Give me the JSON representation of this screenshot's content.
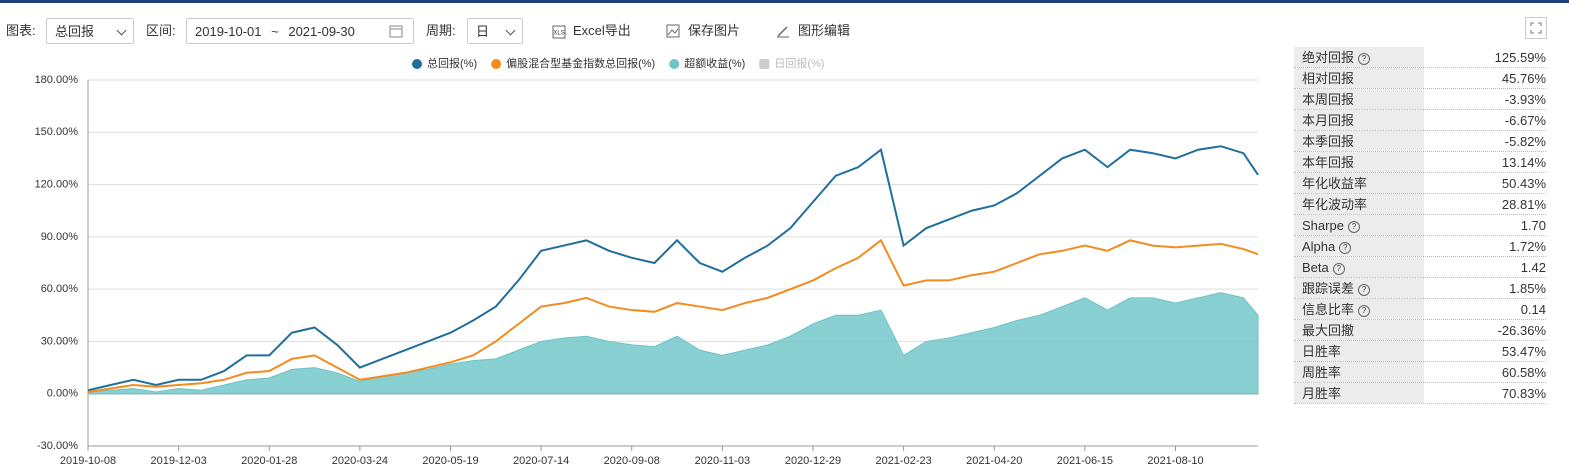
{
  "toolbar": {
    "chart_label": "图表:",
    "chart_select": "总回报",
    "range_label": "区间:",
    "start": "2019-10-01",
    "sep": "~",
    "end": "2021-09-30",
    "period_label": "周期:",
    "period": "日",
    "export": "Excel导出",
    "save": "保存图片",
    "edit": "图形编辑"
  },
  "chart_data": {
    "type": "line",
    "x": [
      "2019-10-08",
      "2019-10-22",
      "2019-11-05",
      "2019-11-19",
      "2019-12-03",
      "2019-12-17",
      "2019-12-31",
      "2020-01-14",
      "2020-01-28",
      "2020-02-11",
      "2020-02-25",
      "2020-03-10",
      "2020-03-24",
      "2020-04-07",
      "2020-04-21",
      "2020-05-05",
      "2020-05-19",
      "2020-06-02",
      "2020-06-16",
      "2020-06-30",
      "2020-07-14",
      "2020-07-28",
      "2020-08-11",
      "2020-08-25",
      "2020-09-08",
      "2020-09-22",
      "2020-10-06",
      "2020-10-20",
      "2020-11-03",
      "2020-11-17",
      "2020-12-01",
      "2020-12-15",
      "2020-12-29",
      "2021-01-12",
      "2021-01-26",
      "2021-02-09",
      "2021-02-23",
      "2021-03-09",
      "2021-03-23",
      "2021-04-06",
      "2021-04-20",
      "2021-05-04",
      "2021-05-18",
      "2021-06-01",
      "2021-06-15",
      "2021-06-29",
      "2021-07-13",
      "2021-07-27",
      "2021-08-10",
      "2021-08-24",
      "2021-09-07",
      "2021-09-21",
      "2021-09-30"
    ],
    "series": [
      {
        "name": "总回报(%)",
        "color": "#1f6f9c",
        "kind": "line",
        "values": [
          2,
          5,
          8,
          5,
          8,
          8,
          13,
          22,
          22,
          35,
          38,
          28,
          15,
          20,
          25,
          30,
          35,
          42,
          50,
          65,
          82,
          85,
          88,
          82,
          78,
          75,
          88,
          75,
          70,
          78,
          85,
          95,
          110,
          125,
          130,
          140,
          85,
          95,
          100,
          105,
          108,
          115,
          125,
          135,
          140,
          130,
          140,
          138,
          135,
          140,
          142,
          138,
          125.59
        ]
      },
      {
        "name": "偏股混合型基金指数总回报(%)",
        "color": "#f28c1f",
        "kind": "line",
        "values": [
          1,
          3,
          5,
          4,
          5,
          6,
          8,
          12,
          13,
          20,
          22,
          15,
          8,
          10,
          12,
          15,
          18,
          22,
          30,
          40,
          50,
          52,
          55,
          50,
          48,
          47,
          52,
          50,
          48,
          52,
          55,
          60,
          65,
          72,
          78,
          88,
          62,
          65,
          65,
          68,
          70,
          75,
          80,
          82,
          85,
          82,
          88,
          85,
          84,
          85,
          86,
          83,
          80
        ]
      },
      {
        "name": "超额收益(%)",
        "color": "#6cc4c7",
        "kind": "area",
        "values": [
          1,
          2,
          3,
          1,
          3,
          2,
          5,
          8,
          9,
          14,
          15,
          12,
          7,
          10,
          12,
          14,
          17,
          19,
          20,
          25,
          30,
          32,
          33,
          30,
          28,
          27,
          33,
          25,
          22,
          25,
          28,
          33,
          40,
          45,
          45,
          48,
          22,
          30,
          32,
          35,
          38,
          42,
          45,
          50,
          55,
          48,
          55,
          55,
          52,
          55,
          58,
          55,
          45
        ]
      }
    ],
    "hidden_series": [
      {
        "name": "日回报(%)",
        "color": "#cccccc"
      }
    ],
    "xlim": [
      "2019-10-08",
      "2021-09-30"
    ],
    "xticks": [
      "2019-10-08",
      "2019-12-03",
      "2020-01-28",
      "2020-03-24",
      "2020-05-19",
      "2020-07-14",
      "2020-09-08",
      "2020-11-03",
      "2020-12-29",
      "2021-02-23",
      "2021-04-20",
      "2021-06-15",
      "2021-08-10"
    ],
    "ylim": [
      -30,
      180
    ],
    "yticks": [
      {
        "value": -30,
        "label": "-30.00%"
      },
      {
        "value": 0,
        "label": "0.00%"
      },
      {
        "value": 30,
        "label": "30.00%"
      },
      {
        "value": 60,
        "label": "60.00%"
      },
      {
        "value": 90,
        "label": "90.00%"
      },
      {
        "value": 120,
        "label": "120.00%"
      },
      {
        "value": 150,
        "label": "150.00%"
      },
      {
        "value": 180,
        "label": "180.00%"
      }
    ],
    "grid": true
  },
  "stats": [
    {
      "label": "绝对回报",
      "value": "125.59%",
      "help": true
    },
    {
      "label": "相对回报",
      "value": "45.76%",
      "help": false
    },
    {
      "label": "本周回报",
      "value": "-3.93%",
      "help": false
    },
    {
      "label": "本月回报",
      "value": "-6.67%",
      "help": false
    },
    {
      "label": "本季回报",
      "value": "-5.82%",
      "help": false
    },
    {
      "label": "本年回报",
      "value": "13.14%",
      "help": false
    },
    {
      "label": "年化收益率",
      "value": "50.43%",
      "help": false
    },
    {
      "label": "年化波动率",
      "value": "28.81%",
      "help": false
    },
    {
      "label": "Sharpe",
      "value": "1.70",
      "help": true
    },
    {
      "label": "Alpha",
      "value": "1.72%",
      "help": true
    },
    {
      "label": "Beta",
      "value": "1.42",
      "help": true
    },
    {
      "label": "跟踪误差",
      "value": "1.85%",
      "help": true
    },
    {
      "label": "信息比率",
      "value": "0.14",
      "help": true
    },
    {
      "label": "最大回撤",
      "value": "-26.36%",
      "help": false
    },
    {
      "label": "日胜率",
      "value": "53.47%",
      "help": false
    },
    {
      "label": "周胜率",
      "value": "60.58%",
      "help": false
    },
    {
      "label": "月胜率",
      "value": "70.83%",
      "help": false
    }
  ]
}
